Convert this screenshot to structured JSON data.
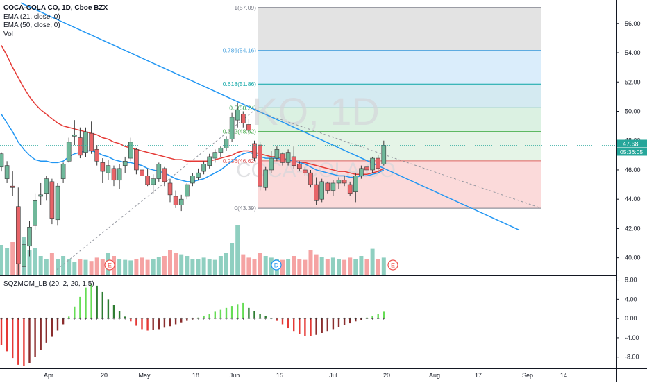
{
  "chart_data": {
    "type": "candlestick",
    "symbol_line": "COCA-COLA CO, 1D, Cboe BZX",
    "watermark_symbol": "KO, 1D",
    "watermark_name": "COCA-COLA CO",
    "indicators": [
      "EMA (21, close, 0)",
      "EMA (50, close, 0)",
      "Vol"
    ],
    "oscillator_label": "SQZMOM_LB (20, 2, 20, 1.5)",
    "price_axis": {
      "ylim": [
        38.8,
        57.6
      ],
      "ticks": [
        "56.00",
        "54.00",
        "52.00",
        "50.00",
        "48.00",
        "46.00",
        "44.00",
        "42.00",
        "40.00"
      ]
    },
    "osc_axis": {
      "ylim": [
        -10.2,
        8.8
      ],
      "ticks": [
        "8.00",
        "4.00",
        "0.00",
        "-4.00",
        "-8.00"
      ]
    },
    "time_axis": {
      "labels": [
        "Apr",
        "20",
        "May",
        "18",
        "Jun",
        "15",
        "Jul",
        "20",
        "Aug",
        "17",
        "Sep",
        "14"
      ]
    },
    "last_price": "47.68",
    "countdown": "05:36:05",
    "fibonacci": {
      "levels": [
        {
          "ratio": "1",
          "price": "57.09",
          "value": 57.09,
          "label": "1(57.09)"
        },
        {
          "ratio": "0.786",
          "price": "54.16",
          "value": 54.16,
          "label": "0.786(54.16)"
        },
        {
          "ratio": "0.618",
          "price": "51.86",
          "value": 51.86,
          "label": "0.618(51.86)"
        },
        {
          "ratio": "0.5",
          "price": "50.24",
          "value": 50.24,
          "label": "0.5(50.24)"
        },
        {
          "ratio": "0.382",
          "price": "48.62",
          "value": 48.62,
          "label": "0.382(48.62)"
        },
        {
          "ratio": "0.236",
          "price": "46.62",
          "value": 46.62,
          "label": "0.236(46.62)"
        },
        {
          "ratio": "0",
          "price": "43.39",
          "value": 43.39,
          "label": "0(43.39)"
        }
      ]
    },
    "events": [
      "E",
      "D",
      "E"
    ],
    "candles": [
      [
        46.2,
        47.2,
        45.9,
        47.1
      ],
      [
        45.4,
        46.6,
        45.1,
        46.3
      ],
      [
        44.9,
        45.9,
        44.2,
        44.8
      ],
      [
        43.5,
        44.8,
        38.8,
        39.6
      ],
      [
        39.4,
        41.2,
        38.9,
        40.9
      ],
      [
        40.8,
        42.5,
        40.1,
        42.1
      ],
      [
        42.2,
        44.4,
        41.9,
        43.9
      ],
      [
        44.2,
        45.1,
        43.6,
        44.3
      ],
      [
        44.4,
        45.6,
        43.9,
        45.4
      ],
      [
        45.2,
        45.4,
        42.3,
        42.7
      ],
      [
        42.6,
        45.1,
        42.2,
        44.9
      ],
      [
        45.4,
        46.5,
        45.1,
        46.4
      ],
      [
        46.6,
        48.2,
        46.5,
        47.9
      ],
      [
        48.3,
        49.4,
        47.7,
        48.4
      ],
      [
        48.2,
        48.9,
        46.8,
        47.0
      ],
      [
        47.2,
        48.9,
        46.9,
        48.6
      ],
      [
        48.5,
        49.3,
        47.1,
        47.3
      ],
      [
        47.4,
        47.7,
        46.3,
        46.6
      ],
      [
        46.5,
        46.8,
        45.1,
        45.9
      ],
      [
        45.8,
        46.7,
        45.3,
        46.3
      ],
      [
        46.1,
        46.3,
        44.9,
        45.3
      ],
      [
        45.3,
        46.4,
        44.7,
        46.1
      ],
      [
        46.3,
        46.9,
        45.8,
        46.6
      ],
      [
        46.8,
        48.2,
        46.6,
        47.9
      ],
      [
        47.4,
        47.5,
        45.7,
        46.0
      ],
      [
        46.0,
        46.4,
        45.1,
        45.6
      ],
      [
        45.6,
        46.1,
        44.9,
        45.0
      ],
      [
        45.0,
        45.7,
        44.4,
        45.4
      ],
      [
        45.4,
        46.5,
        45.2,
        46.4
      ],
      [
        46.1,
        46.2,
        44.9,
        45.2
      ],
      [
        45.1,
        45.4,
        43.8,
        44.3
      ],
      [
        44.2,
        44.6,
        43.4,
        43.6
      ],
      [
        43.6,
        44.3,
        43.2,
        44.0
      ],
      [
        44.2,
        45.1,
        44.0,
        45.0
      ],
      [
        45.1,
        45.8,
        44.9,
        45.6
      ],
      [
        45.5,
        46.1,
        45.3,
        45.8
      ],
      [
        45.9,
        46.6,
        45.7,
        46.4
      ],
      [
        46.3,
        47.1,
        46.1,
        46.9
      ],
      [
        46.8,
        47.4,
        46.5,
        47.2
      ],
      [
        47.2,
        47.6,
        46.9,
        47.5
      ],
      [
        47.5,
        48.3,
        47.3,
        48.1
      ],
      [
        48.1,
        49.9,
        47.9,
        49.6
      ],
      [
        49.4,
        50.6,
        48.9,
        50.1
      ],
      [
        49.8,
        50.0,
        48.9,
        49.2
      ],
      [
        49.1,
        49.5,
        48.4,
        48.7
      ],
      [
        47.8,
        48.0,
        46.6,
        46.8
      ],
      [
        47.7,
        47.9,
        44.6,
        44.9
      ],
      [
        44.8,
        46.2,
        44.6,
        46.0
      ],
      [
        46.0,
        47.3,
        45.8,
        46.8
      ],
      [
        46.8,
        47.6,
        46.6,
        47.4
      ],
      [
        47.1,
        47.2,
        46.3,
        46.5
      ],
      [
        46.5,
        47.4,
        46.3,
        47.2
      ],
      [
        46.9,
        47.6,
        46.1,
        46.3
      ],
      [
        46.4,
        46.6,
        45.9,
        46.1
      ],
      [
        46.0,
        46.2,
        45.6,
        45.8
      ],
      [
        45.8,
        46.0,
        44.8,
        45.0
      ],
      [
        45.0,
        45.5,
        43.6,
        43.9
      ],
      [
        44.0,
        45.4,
        43.8,
        45.2
      ],
      [
        45.1,
        45.2,
        44.4,
        44.6
      ],
      [
        44.6,
        45.3,
        44.2,
        45.1
      ],
      [
        45.1,
        45.5,
        44.7,
        45.3
      ],
      [
        45.3,
        45.6,
        44.9,
        45.1
      ],
      [
        45.0,
        45.2,
        44.2,
        44.4
      ],
      [
        44.5,
        45.8,
        43.8,
        45.6
      ],
      [
        45.6,
        46.3,
        45.4,
        46.1
      ],
      [
        46.2,
        46.7,
        45.8,
        46.0
      ],
      [
        46.0,
        46.9,
        45.8,
        46.8
      ],
      [
        46.8,
        47.0,
        45.8,
        46.1
      ],
      [
        46.4,
        48.0,
        46.3,
        47.68
      ]
    ],
    "ema21": [
      49.8,
      49.2,
      48.6,
      47.9,
      47.4,
      47.0,
      46.7,
      46.6,
      46.6,
      46.5,
      46.5,
      46.6,
      46.9,
      47.1,
      47.2,
      47.3,
      47.3,
      47.2,
      47.0,
      46.9,
      46.7,
      46.6,
      46.5,
      46.5,
      46.4,
      46.3,
      46.1,
      46.0,
      45.9,
      45.8,
      45.6,
      45.4,
      45.3,
      45.2,
      45.2,
      45.3,
      45.4,
      45.6,
      45.8,
      46.0,
      46.3,
      46.6,
      46.9,
      47.1,
      47.2,
      47.1,
      46.9,
      46.8,
      46.8,
      46.8,
      46.7,
      46.7,
      46.6,
      46.5,
      46.4,
      46.2,
      46.0,
      45.9,
      45.8,
      45.7,
      45.6,
      45.6,
      45.5,
      45.5,
      45.6,
      45.6,
      45.7,
      45.8,
      46.0
    ],
    "ema50": [
      54.5,
      53.8,
      53.0,
      52.3,
      51.6,
      51.0,
      50.5,
      50.1,
      49.8,
      49.5,
      49.2,
      49.0,
      48.9,
      48.8,
      48.7,
      48.6,
      48.5,
      48.4,
      48.2,
      48.1,
      47.9,
      47.8,
      47.6,
      47.5,
      47.4,
      47.3,
      47.2,
      47.1,
      47.0,
      46.9,
      46.8,
      46.7,
      46.7,
      46.6,
      46.6,
      46.6,
      46.6,
      46.6,
      46.7,
      46.8,
      46.9,
      47.0,
      47.2,
      47.3,
      47.3,
      47.2,
      47.1,
      47.0,
      46.9,
      46.9,
      46.8,
      46.7,
      46.6,
      46.5,
      46.5,
      46.4,
      46.3,
      46.2,
      46.1,
      46.0,
      45.9,
      45.9,
      45.8,
      45.7,
      45.7,
      45.7,
      45.8,
      45.9,
      46.1
    ],
    "volume": [
      0.55,
      0.5,
      0.6,
      0.95,
      0.7,
      0.45,
      0.5,
      0.35,
      0.3,
      0.4,
      0.3,
      0.35,
      0.3,
      0.25,
      0.3,
      0.28,
      0.26,
      0.32,
      0.3,
      0.4,
      0.35,
      0.3,
      0.28,
      0.27,
      0.3,
      0.32,
      0.28,
      0.3,
      0.33,
      0.35,
      0.45,
      0.4,
      0.38,
      0.35,
      0.3,
      0.3,
      0.32,
      0.3,
      0.28,
      0.35,
      0.4,
      0.58,
      0.9,
      0.38,
      0.32,
      0.3,
      0.4,
      0.35,
      0.32,
      0.3,
      0.28,
      0.3,
      0.35,
      0.3,
      0.28,
      0.45,
      0.38,
      0.33,
      0.3,
      0.32,
      0.3,
      0.28,
      0.32,
      0.3,
      0.35,
      0.3,
      0.48,
      0.3,
      0.32
    ],
    "squeeze_momentum": [
      -5.5,
      -6.8,
      -8.2,
      -9.6,
      -9.8,
      -9.2,
      -8.0,
      -6.5,
      -5.0,
      -3.8,
      -2.5,
      -1.2,
      0.4,
      2.5,
      4.5,
      6.4,
      7.2,
      6.8,
      5.5,
      4.0,
      2.8,
      1.5,
      0.4,
      -0.6,
      -1.5,
      -2.2,
      -2.5,
      -2.4,
      -2.2,
      -1.9,
      -1.6,
      -1.2,
      -0.8,
      -0.5,
      -0.2,
      0.2,
      0.6,
      1.0,
      1.4,
      1.8,
      2.2,
      2.6,
      3.0,
      3.2,
      2.2,
      1.6,
      1.0,
      0.5,
      0.1,
      -0.5,
      -1.2,
      -2.0,
      -2.6,
      -3.2,
      -3.6,
      -3.7,
      -3.4,
      -3.0,
      -2.6,
      -2.2,
      -1.8,
      -1.4,
      -1.0,
      -0.6,
      -0.3,
      0.2,
      0.5,
      0.9,
      1.4
    ]
  }
}
